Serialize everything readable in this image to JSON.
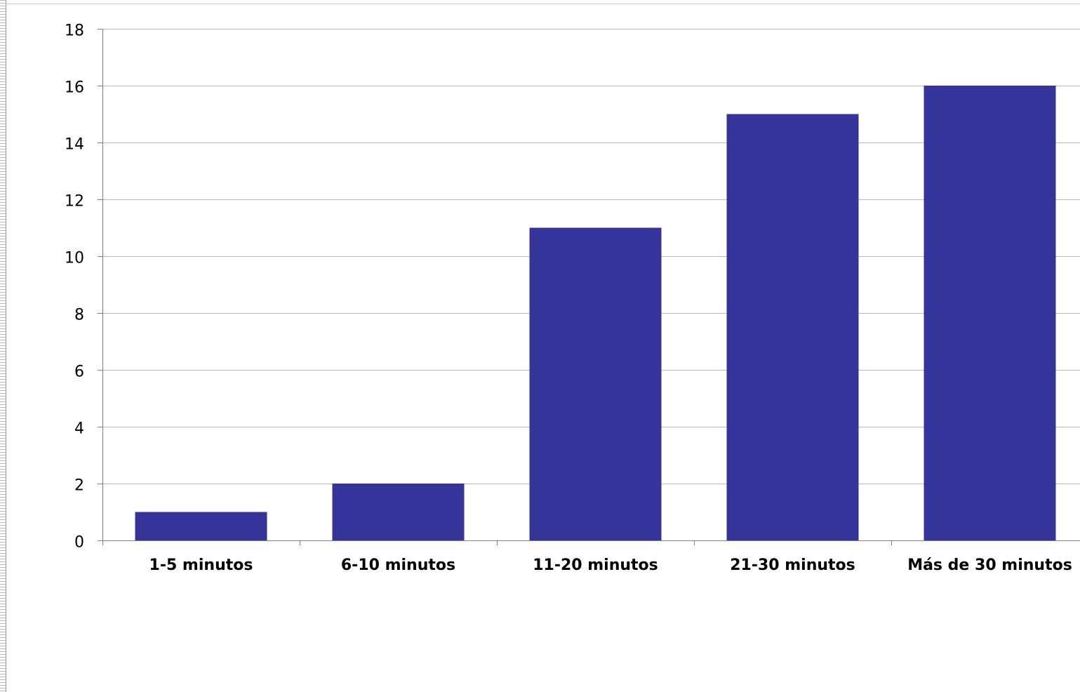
{
  "chart_data": {
    "type": "bar",
    "categories": [
      "1-5 minutos",
      "6-10 minutos",
      "11-20 minutos",
      "21-30 minutos",
      "Más de 30 minutos"
    ],
    "values": [
      1,
      2,
      11,
      15,
      16
    ],
    "yticks": [
      "0",
      "2",
      "4",
      "6",
      "8",
      "10",
      "12",
      "14",
      "16",
      "18"
    ],
    "ylim": [
      0,
      18
    ],
    "grid": true,
    "legend": "none",
    "bar_color": "#35349a",
    "grid_color": "#b9b9b9",
    "axis_color": "#808080"
  }
}
